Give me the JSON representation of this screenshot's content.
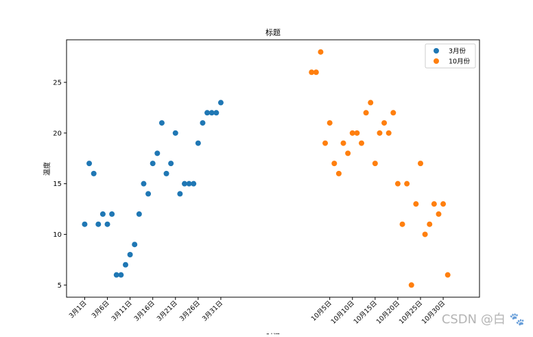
{
  "chart_data": {
    "type": "scatter",
    "title": "标题",
    "xlabel": "时间",
    "ylabel": "温度",
    "yticks": [
      5,
      10,
      15,
      20,
      25
    ],
    "ylim": [
      3.8,
      29.2
    ],
    "xlim": [
      -4,
      87
    ],
    "legend_position": "top-right",
    "xtick_labels": [
      {
        "x": 0,
        "label": "3月1日"
      },
      {
        "x": 5,
        "label": "3月6日"
      },
      {
        "x": 10,
        "label": "3月11日"
      },
      {
        "x": 15,
        "label": "3月16日"
      },
      {
        "x": 20,
        "label": "3月21日"
      },
      {
        "x": 25,
        "label": "3月26日"
      },
      {
        "x": 30,
        "label": "3月31日"
      },
      {
        "x": 54,
        "label": "10月5日"
      },
      {
        "x": 59,
        "label": "10月10日"
      },
      {
        "x": 64,
        "label": "10月15日"
      },
      {
        "x": 69,
        "label": "10月20日"
      },
      {
        "x": 74,
        "label": "10月25日"
      },
      {
        "x": 79,
        "label": "10月30日"
      }
    ],
    "series": [
      {
        "name": "3月份",
        "color": "#1f77b4",
        "x": [
          0,
          1,
          2,
          3,
          4,
          5,
          6,
          7,
          8,
          9,
          10,
          11,
          12,
          13,
          14,
          15,
          16,
          17,
          18,
          19,
          20,
          21,
          22,
          23,
          24,
          25,
          26,
          27,
          28,
          29,
          30
        ],
        "y": [
          11,
          17,
          16,
          11,
          12,
          11,
          12,
          6,
          6,
          7,
          8,
          9,
          12,
          15,
          14,
          17,
          18,
          21,
          16,
          17,
          20,
          14,
          15,
          15,
          15,
          19,
          21,
          22,
          22,
          22,
          23
        ]
      },
      {
        "name": "10月份",
        "color": "#ff7f0e",
        "x": [
          50,
          51,
          52,
          53,
          54,
          55,
          56,
          57,
          58,
          59,
          60,
          61,
          62,
          63,
          64,
          65,
          66,
          67,
          68,
          69,
          70,
          71,
          72,
          73,
          74,
          75,
          76,
          77,
          78,
          79,
          80
        ],
        "y": [
          26,
          26,
          28,
          19,
          21,
          17,
          16,
          19,
          18,
          20,
          20,
          19,
          22,
          23,
          17,
          20,
          21,
          20,
          22,
          15,
          11,
          15,
          5,
          13,
          17,
          10,
          11,
          13,
          12,
          13,
          6
        ]
      }
    ]
  },
  "watermark": "CSDN @白 🐾"
}
